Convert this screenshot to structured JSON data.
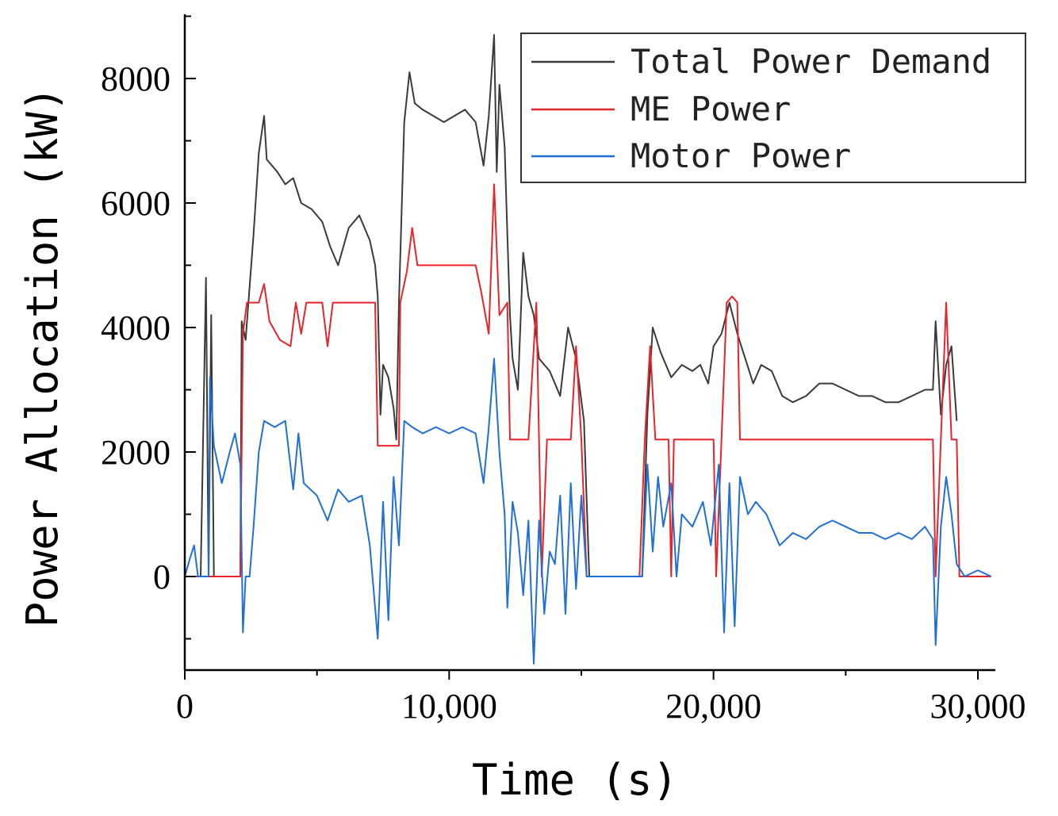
{
  "chart_data": {
    "type": "line",
    "title": "",
    "xlabel": "Time (s)",
    "ylabel": "Power Allocation (kW)",
    "xlim": [
      0,
      30500
    ],
    "ylim": [
      -1500,
      9000
    ],
    "x_ticks": [
      0,
      10000,
      20000,
      30000
    ],
    "x_tick_labels": [
      "0",
      "10,000",
      "20,000",
      "30,000"
    ],
    "y_ticks": [
      0,
      2000,
      4000,
      6000,
      8000
    ],
    "y_tick_labels": [
      "0",
      "2000",
      "4000",
      "6000",
      "8000"
    ],
    "legend_position": "top-right",
    "series": [
      {
        "name": "Total Power Demand",
        "color": "#3a3a3a",
        "points": [
          [
            0,
            0
          ],
          [
            600,
            0
          ],
          [
            800,
            4800
          ],
          [
            900,
            0
          ],
          [
            1000,
            4200
          ],
          [
            1100,
            0
          ],
          [
            2100,
            0
          ],
          [
            2150,
            4100
          ],
          [
            2300,
            3800
          ],
          [
            2600,
            5500
          ],
          [
            2800,
            6800
          ],
          [
            3000,
            7400
          ],
          [
            3100,
            6700
          ],
          [
            3500,
            6500
          ],
          [
            3800,
            6300
          ],
          [
            4100,
            6400
          ],
          [
            4400,
            6000
          ],
          [
            4800,
            5900
          ],
          [
            5200,
            5700
          ],
          [
            5500,
            5300
          ],
          [
            5800,
            5000
          ],
          [
            6200,
            5600
          ],
          [
            6600,
            5800
          ],
          [
            7000,
            5400
          ],
          [
            7200,
            5000
          ],
          [
            7300,
            4500
          ],
          [
            7400,
            2600
          ],
          [
            7500,
            3400
          ],
          [
            7700,
            3200
          ],
          [
            7900,
            2700
          ],
          [
            8000,
            2200
          ],
          [
            8100,
            4400
          ],
          [
            8300,
            7300
          ],
          [
            8500,
            8100
          ],
          [
            8700,
            7600
          ],
          [
            9000,
            7500
          ],
          [
            9400,
            7400
          ],
          [
            9800,
            7300
          ],
          [
            10200,
            7400
          ],
          [
            10600,
            7500
          ],
          [
            11000,
            7300
          ],
          [
            11300,
            6600
          ],
          [
            11500,
            7400
          ],
          [
            11700,
            8700
          ],
          [
            11800,
            6500
          ],
          [
            11900,
            7900
          ],
          [
            12100,
            6900
          ],
          [
            12200,
            5500
          ],
          [
            12300,
            4200
          ],
          [
            12400,
            3500
          ],
          [
            12600,
            3000
          ],
          [
            12800,
            5200
          ],
          [
            13000,
            4500
          ],
          [
            13200,
            4200
          ],
          [
            13400,
            3500
          ],
          [
            13800,
            3300
          ],
          [
            14000,
            3100
          ],
          [
            14200,
            2900
          ],
          [
            14500,
            4000
          ],
          [
            14800,
            3500
          ],
          [
            15100,
            2500
          ],
          [
            15300,
            0
          ],
          [
            17300,
            0
          ],
          [
            17500,
            2600
          ],
          [
            17700,
            4000
          ],
          [
            18000,
            3600
          ],
          [
            18400,
            3200
          ],
          [
            18800,
            3400
          ],
          [
            19200,
            3300
          ],
          [
            19500,
            3400
          ],
          [
            19800,
            3100
          ],
          [
            20000,
            3700
          ],
          [
            20300,
            3900
          ],
          [
            20600,
            4400
          ],
          [
            20900,
            3900
          ],
          [
            21200,
            3500
          ],
          [
            21500,
            3100
          ],
          [
            21800,
            3400
          ],
          [
            22200,
            3300
          ],
          [
            22600,
            2900
          ],
          [
            23000,
            2800
          ],
          [
            23500,
            2900
          ],
          [
            24000,
            3100
          ],
          [
            24500,
            3100
          ],
          [
            25000,
            3000
          ],
          [
            25500,
            2900
          ],
          [
            26000,
            2900
          ],
          [
            26500,
            2800
          ],
          [
            27000,
            2800
          ],
          [
            27500,
            2900
          ],
          [
            28000,
            3000
          ],
          [
            28300,
            3000
          ],
          [
            28400,
            4100
          ],
          [
            28600,
            2600
          ],
          [
            28800,
            3400
          ],
          [
            29000,
            3700
          ],
          [
            29200,
            2500
          ]
        ]
      },
      {
        "name": "ME Power",
        "color": "#e8232a",
        "points": [
          [
            0,
            0
          ],
          [
            2100,
            0
          ],
          [
            2200,
            3900
          ],
          [
            2350,
            4400
          ],
          [
            2800,
            4400
          ],
          [
            3000,
            4700
          ],
          [
            3200,
            4100
          ],
          [
            3600,
            3800
          ],
          [
            4000,
            3700
          ],
          [
            4200,
            4400
          ],
          [
            4400,
            3900
          ],
          [
            4600,
            4400
          ],
          [
            5200,
            4400
          ],
          [
            5400,
            3700
          ],
          [
            5600,
            4400
          ],
          [
            6000,
            4400
          ],
          [
            6800,
            4400
          ],
          [
            7200,
            4400
          ],
          [
            7300,
            2100
          ],
          [
            7800,
            2100
          ],
          [
            8100,
            2100
          ],
          [
            8150,
            4400
          ],
          [
            8400,
            4900
          ],
          [
            8600,
            5600
          ],
          [
            8800,
            5000
          ],
          [
            9200,
            5000
          ],
          [
            10000,
            5000
          ],
          [
            10600,
            5000
          ],
          [
            11000,
            5000
          ],
          [
            11200,
            4600
          ],
          [
            11500,
            3900
          ],
          [
            11700,
            6300
          ],
          [
            11900,
            4200
          ],
          [
            12200,
            4400
          ],
          [
            12300,
            2200
          ],
          [
            13000,
            2200
          ],
          [
            13300,
            4400
          ],
          [
            13500,
            0
          ],
          [
            13700,
            2200
          ],
          [
            14600,
            2200
          ],
          [
            14800,
            3700
          ],
          [
            15000,
            2200
          ],
          [
            15200,
            0
          ],
          [
            17200,
            0
          ],
          [
            17400,
            2200
          ],
          [
            17600,
            3700
          ],
          [
            17800,
            2200
          ],
          [
            18300,
            2200
          ],
          [
            18400,
            0
          ],
          [
            18500,
            2200
          ],
          [
            20000,
            2200
          ],
          [
            20100,
            0
          ],
          [
            20300,
            2200
          ],
          [
            20500,
            4400
          ],
          [
            20700,
            4500
          ],
          [
            20900,
            4400
          ],
          [
            21000,
            2200
          ],
          [
            21800,
            2200
          ],
          [
            23000,
            2200
          ],
          [
            25000,
            2200
          ],
          [
            27000,
            2200
          ],
          [
            28300,
            2200
          ],
          [
            28400,
            0
          ],
          [
            28600,
            2200
          ],
          [
            28800,
            4400
          ],
          [
            29000,
            2200
          ],
          [
            29200,
            2200
          ],
          [
            29300,
            0
          ],
          [
            30500,
            0
          ]
        ]
      },
      {
        "name": "Motor Power",
        "color": "#1f6fd6",
        "points": [
          [
            0,
            0
          ],
          [
            200,
            300
          ],
          [
            350,
            500
          ],
          [
            500,
            0
          ],
          [
            900,
            0
          ],
          [
            950,
            3200
          ],
          [
            1100,
            2100
          ],
          [
            1400,
            1500
          ],
          [
            1700,
            2000
          ],
          [
            1900,
            2300
          ],
          [
            2100,
            1800
          ],
          [
            2200,
            -900
          ],
          [
            2300,
            0
          ],
          [
            2450,
            0
          ],
          [
            2600,
            800
          ],
          [
            2800,
            2000
          ],
          [
            3000,
            2500
          ],
          [
            3400,
            2400
          ],
          [
            3800,
            2500
          ],
          [
            4100,
            1400
          ],
          [
            4300,
            2300
          ],
          [
            4500,
            1500
          ],
          [
            5000,
            1300
          ],
          [
            5400,
            900
          ],
          [
            5800,
            1400
          ],
          [
            6200,
            1200
          ],
          [
            6700,
            1300
          ],
          [
            7000,
            500
          ],
          [
            7300,
            -1000
          ],
          [
            7500,
            1200
          ],
          [
            7700,
            -700
          ],
          [
            7900,
            1600
          ],
          [
            8100,
            500
          ],
          [
            8300,
            2500
          ],
          [
            8600,
            2400
          ],
          [
            9000,
            2300
          ],
          [
            9500,
            2400
          ],
          [
            10000,
            2300
          ],
          [
            10500,
            2400
          ],
          [
            11000,
            2300
          ],
          [
            11300,
            1500
          ],
          [
            11500,
            2400
          ],
          [
            11700,
            3500
          ],
          [
            11900,
            2000
          ],
          [
            12100,
            1000
          ],
          [
            12200,
            -500
          ],
          [
            12400,
            1200
          ],
          [
            12600,
            700
          ],
          [
            12800,
            -300
          ],
          [
            13000,
            900
          ],
          [
            13200,
            -1400
          ],
          [
            13400,
            900
          ],
          [
            13600,
            -600
          ],
          [
            13800,
            400
          ],
          [
            14000,
            200
          ],
          [
            14200,
            1300
          ],
          [
            14400,
            -600
          ],
          [
            14600,
            1500
          ],
          [
            14800,
            -200
          ],
          [
            15000,
            1300
          ],
          [
            15200,
            0
          ],
          [
            15600,
            0
          ],
          [
            16000,
            0
          ],
          [
            17000,
            0
          ],
          [
            17300,
            0
          ],
          [
            17500,
            1800
          ],
          [
            17700,
            400
          ],
          [
            17900,
            1600
          ],
          [
            18100,
            800
          ],
          [
            18400,
            1500
          ],
          [
            18600,
            0
          ],
          [
            18800,
            1000
          ],
          [
            19200,
            800
          ],
          [
            19600,
            1200
          ],
          [
            19900,
            500
          ],
          [
            20200,
            1800
          ],
          [
            20400,
            -900
          ],
          [
            20600,
            1500
          ],
          [
            20800,
            -800
          ],
          [
            21000,
            1600
          ],
          [
            21300,
            1000
          ],
          [
            21600,
            1200
          ],
          [
            22000,
            1000
          ],
          [
            22500,
            500
          ],
          [
            23000,
            700
          ],
          [
            23500,
            600
          ],
          [
            24000,
            800
          ],
          [
            24500,
            900
          ],
          [
            25000,
            800
          ],
          [
            25500,
            700
          ],
          [
            26000,
            700
          ],
          [
            26500,
            600
          ],
          [
            27000,
            700
          ],
          [
            27500,
            600
          ],
          [
            28000,
            800
          ],
          [
            28300,
            600
          ],
          [
            28400,
            -1100
          ],
          [
            28600,
            800
          ],
          [
            28800,
            1600
          ],
          [
            29000,
            1000
          ],
          [
            29200,
            200
          ],
          [
            29500,
            0
          ],
          [
            30000,
            100
          ],
          [
            30500,
            0
          ]
        ]
      }
    ]
  }
}
